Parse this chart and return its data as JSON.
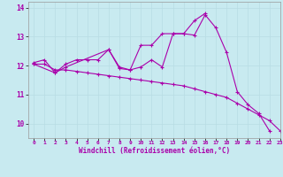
{
  "background_color": "#c8eaf0",
  "grid_color": "#b8dce4",
  "line_color": "#aa00aa",
  "xlabel": "Windchill (Refroidissement éolien,°C)",
  "xlim": [
    -0.5,
    23
  ],
  "ylim": [
    9.5,
    14.2
  ],
  "yticks": [
    10,
    11,
    12,
    13,
    14
  ],
  "xticks": [
    0,
    1,
    2,
    3,
    4,
    5,
    6,
    7,
    8,
    9,
    10,
    11,
    12,
    13,
    14,
    15,
    16,
    17,
    18,
    19,
    20,
    21,
    22,
    23
  ],
  "series1": [
    12.1,
    12.2,
    11.75,
    12.05,
    12.2,
    12.2,
    12.2,
    12.55,
    11.95,
    11.85,
    11.95,
    12.2,
    11.95,
    13.1,
    13.1,
    13.05,
    13.75,
    13.3,
    12.45,
    11.1,
    10.65,
    10.35,
    9.75,
    null
  ],
  "series2_x": [
    0,
    2,
    3,
    7,
    8,
    9,
    10,
    11,
    12,
    13,
    14,
    15,
    16
  ],
  "series2_y": [
    12.05,
    11.75,
    11.95,
    12.55,
    11.9,
    11.85,
    12.7,
    12.7,
    13.1,
    13.1,
    13.1,
    13.55,
    13.8
  ],
  "series3": [
    12.05,
    12.05,
    11.85,
    11.85,
    11.8,
    11.75,
    11.7,
    11.65,
    11.6,
    11.55,
    11.5,
    11.45,
    11.4,
    11.35,
    11.3,
    11.2,
    11.1,
    11.0,
    10.9,
    10.7,
    10.5,
    10.3,
    10.1,
    9.75
  ]
}
